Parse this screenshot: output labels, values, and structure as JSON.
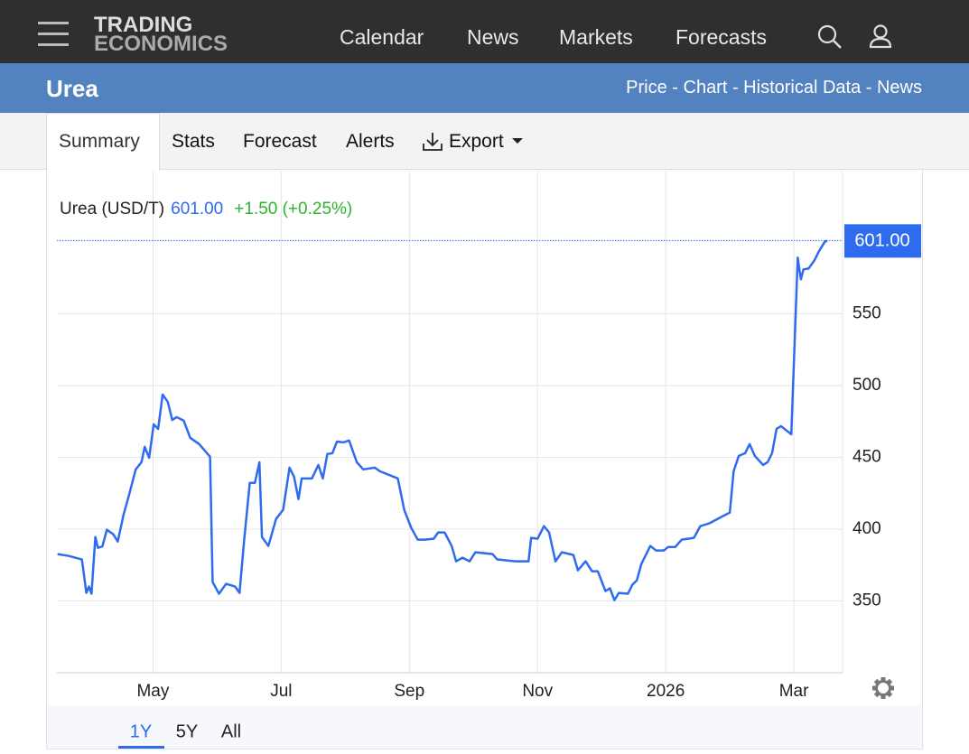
{
  "header": {
    "logo": [
      "TRADING",
      "ECONOMICS"
    ],
    "nav": [
      "Calendar",
      "News",
      "Markets",
      "Forecasts"
    ]
  },
  "title_bar": {
    "title": "Urea",
    "links": "Price - Chart - Historical Data - News"
  },
  "tabs": [
    "Summary",
    "Stats",
    "Forecast",
    "Alerts",
    "Export"
  ],
  "quote": {
    "name": "Urea (USD/T)",
    "price": "601.00",
    "change": "+1.50 (+0.25%)"
  },
  "chart_data": {
    "type": "line",
    "color": "#2e6bef",
    "x": [
      3.51,
      3.68,
      3.89,
      3.96,
      4.0,
      4.04,
      4.1,
      4.14,
      4.21,
      4.28,
      4.38,
      4.45,
      4.54,
      4.62,
      4.73,
      4.82,
      4.87,
      4.94,
      5.01,
      5.08,
      5.15,
      5.23,
      5.3,
      5.37,
      5.48,
      5.58,
      5.72,
      5.89,
      5.93,
      6.03,
      6.14,
      6.28,
      6.35,
      6.42,
      6.51,
      6.59,
      6.66,
      6.7,
      6.8,
      6.92,
      7.03,
      7.13,
      7.2,
      7.27,
      7.32,
      7.48,
      7.58,
      7.65,
      7.72,
      7.8,
      7.87,
      7.97,
      8.06,
      8.18,
      8.28,
      8.46,
      8.54,
      8.82,
      8.92,
      9.03,
      9.13,
      9.24,
      9.38,
      9.45,
      9.55,
      9.66,
      9.73,
      9.83,
      9.94,
      10.03,
      10.3,
      10.37,
      10.65,
      10.86,
      10.9,
      11.0,
      11.1,
      11.18,
      11.28,
      11.38,
      11.56,
      11.63,
      11.75,
      11.85,
      11.94,
      12.06,
      12.13,
      12.2,
      12.27,
      12.41,
      12.48,
      12.55,
      12.62,
      12.69,
      12.76,
      12.85,
      12.97,
      13.04,
      13.15,
      13.25,
      13.44,
      13.54,
      13.68,
      13.89,
      14.0,
      14.06,
      14.14,
      14.24,
      14.31,
      14.39,
      14.52,
      14.59,
      14.66,
      14.73,
      14.8,
      14.87,
      14.96,
      15.06,
      15.11,
      15.15,
      15.23,
      15.32,
      15.39,
      15.48,
      15.52
    ],
    "values": [
      382.6,
      381.4,
      378.9,
      355.6,
      360,
      355,
      394.5,
      387,
      388,
      399.6,
      396.4,
      391.4,
      410,
      422.8,
      441.6,
      446.6,
      457.3,
      449.7,
      473,
      469.8,
      493.7,
      488.6,
      476,
      478,
      475.5,
      463.6,
      459.2,
      450.4,
      363.2,
      355,
      361.9,
      360,
      355.6,
      391.4,
      432.2,
      432.2,
      446.6,
      394.5,
      388.3,
      407.1,
      413.4,
      442.8,
      436.6,
      420.9,
      435.3,
      435.3,
      444.7,
      435.3,
      452.3,
      452.9,
      461,
      460.4,
      461.7,
      446.6,
      441.6,
      442.8,
      440.3,
      435.3,
      413.4,
      400.8,
      392.7,
      392.7,
      393.3,
      397.7,
      397.7,
      388.3,
      377.6,
      380.1,
      377.6,
      383.9,
      382.6,
      378.9,
      377.6,
      377.6,
      393.9,
      393.3,
      402.1,
      397.7,
      377.6,
      383.9,
      382,
      371.3,
      377.6,
      370.7,
      370.7,
      356.9,
      358.8,
      350.6,
      355.6,
      355,
      361.3,
      364.4,
      375.7,
      382,
      388.3,
      385.1,
      385.1,
      387.6,
      387.6,
      392.7,
      393.9,
      402.1,
      404,
      409,
      411.5,
      440.3,
      451,
      452.9,
      459.2,
      451,
      444.7,
      446.6,
      452.9,
      469.8,
      471.7,
      469.2,
      466.1,
      589,
      574,
      580.9,
      581.5,
      587.1,
      593.4,
      600,
      601
    ],
    "xlim": [
      3.5,
      15.76
    ],
    "xticks": [
      {
        "value": 5,
        "label": "May"
      },
      {
        "value": 7,
        "label": "Jul"
      },
      {
        "value": 9,
        "label": "Sep"
      },
      {
        "value": 11,
        "label": "Nov"
      },
      {
        "value": 13,
        "label": "2026"
      },
      {
        "value": 15,
        "label": "Mar"
      }
    ],
    "ylim": [
      300,
      649
    ],
    "yticks": [
      350,
      400,
      450,
      500,
      550
    ],
    "grid": true
  },
  "ranges": [
    "1Y",
    "5Y",
    "All"
  ]
}
